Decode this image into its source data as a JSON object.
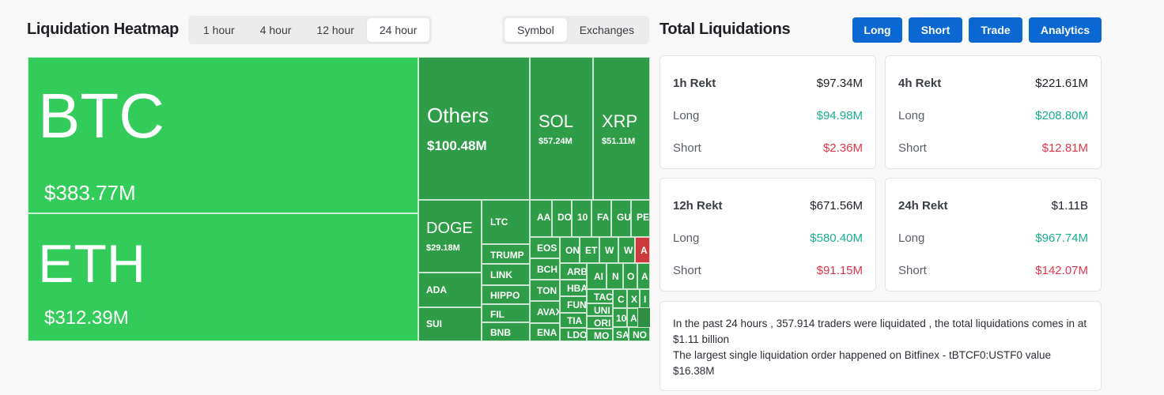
{
  "header": {
    "title": "Liquidation Heatmap",
    "time_options": [
      "1 hour",
      "4 hour",
      "12 hour",
      "24 hour"
    ],
    "time_selected": "24 hour",
    "mode_options": [
      "Symbol",
      "Exchanges"
    ],
    "mode_selected": "Symbol"
  },
  "right_header": {
    "title": "Total Liquidations",
    "buttons": [
      "Long",
      "Short",
      "Trade",
      "Analytics"
    ]
  },
  "colors": {
    "bright_green": "#33cc5a",
    "dark_green": "#2f9c47",
    "red": "#cc3b3b",
    "button_blue": "#0b67d1",
    "long_green": "#1bae8f",
    "short_red": "#e0364a"
  },
  "heatmap": {
    "tiles": [
      {
        "symbol": "BTC",
        "value": "$383.77M",
        "tone": "bright"
      },
      {
        "symbol": "ETH",
        "value": "$312.39M",
        "tone": "bright"
      },
      {
        "symbol": "Others",
        "value": "$100.48M",
        "tone": "dark"
      },
      {
        "symbol": "SOL",
        "value": "$57.24M",
        "tone": "dark"
      },
      {
        "symbol": "XRP",
        "value": "$51.11M",
        "tone": "dark"
      },
      {
        "symbol": "DOGE",
        "value": "$29.18M",
        "tone": "dark"
      },
      {
        "symbol": "ADA",
        "value": "",
        "tone": "dark"
      },
      {
        "symbol": "SUI",
        "value": "",
        "tone": "dark"
      },
      {
        "symbol": "LTC",
        "value": "",
        "tone": "dark"
      },
      {
        "symbol": "TRUMP",
        "value": "",
        "tone": "dark"
      },
      {
        "symbol": "LINK",
        "value": "",
        "tone": "dark"
      },
      {
        "symbol": "HIPPO",
        "value": "",
        "tone": "dark"
      },
      {
        "symbol": "FIL",
        "value": "",
        "tone": "dark"
      },
      {
        "symbol": "BNB",
        "value": "",
        "tone": "dark"
      },
      {
        "symbol": "AA",
        "value": "",
        "tone": "dark"
      },
      {
        "symbol": "DO",
        "value": "",
        "tone": "dark"
      },
      {
        "symbol": "10",
        "value": "",
        "tone": "dark"
      },
      {
        "symbol": "FA",
        "value": "",
        "tone": "dark"
      },
      {
        "symbol": "GU",
        "value": "",
        "tone": "dark"
      },
      {
        "symbol": "PE",
        "value": "",
        "tone": "dark"
      },
      {
        "symbol": "EOS",
        "value": "",
        "tone": "dark"
      },
      {
        "symbol": "BCH",
        "value": "",
        "tone": "dark"
      },
      {
        "symbol": "TON",
        "value": "",
        "tone": "dark"
      },
      {
        "symbol": "AVAX",
        "value": "",
        "tone": "dark"
      },
      {
        "symbol": "ENA",
        "value": "",
        "tone": "dark"
      },
      {
        "symbol": "ON",
        "value": "",
        "tone": "dark"
      },
      {
        "symbol": "ET",
        "value": "",
        "tone": "dark"
      },
      {
        "symbol": "W",
        "value": "",
        "tone": "dark"
      },
      {
        "symbol": "W",
        "value": "",
        "tone": "dark"
      },
      {
        "symbol": "A",
        "value": "",
        "tone": "red"
      },
      {
        "symbol": "ARB",
        "value": "",
        "tone": "dark"
      },
      {
        "symbol": "HBA",
        "value": "",
        "tone": "dark"
      },
      {
        "symbol": "FUN",
        "value": "",
        "tone": "dark"
      },
      {
        "symbol": "TIA",
        "value": "",
        "tone": "dark"
      },
      {
        "symbol": "LDO",
        "value": "",
        "tone": "dark"
      },
      {
        "symbol": "AI",
        "value": "",
        "tone": "dark"
      },
      {
        "symbol": "N",
        "value": "",
        "tone": "dark"
      },
      {
        "symbol": "O",
        "value": "",
        "tone": "dark"
      },
      {
        "symbol": "A",
        "value": "",
        "tone": "dark"
      },
      {
        "symbol": "TAC",
        "value": "",
        "tone": "dark"
      },
      {
        "symbol": "UNI",
        "value": "",
        "tone": "dark"
      },
      {
        "symbol": "ORI",
        "value": "",
        "tone": "dark"
      },
      {
        "symbol": "MO",
        "value": "",
        "tone": "dark"
      },
      {
        "symbol": "C",
        "value": "",
        "tone": "dark"
      },
      {
        "symbol": "X",
        "value": "",
        "tone": "dark"
      },
      {
        "symbol": "I",
        "value": "",
        "tone": "dark"
      },
      {
        "symbol": "10",
        "value": "",
        "tone": "dark"
      },
      {
        "symbol": "A",
        "value": "",
        "tone": "dark"
      },
      {
        "symbol": "SA",
        "value": "",
        "tone": "dark"
      },
      {
        "symbol": "NO",
        "value": "",
        "tone": "dark"
      }
    ]
  },
  "cards": [
    {
      "period": "1h Rekt",
      "total": "$97.34M",
      "long_label": "Long",
      "long": "$94.98M",
      "short_label": "Short",
      "short": "$2.36M"
    },
    {
      "period": "4h Rekt",
      "total": "$221.61M",
      "long_label": "Long",
      "long": "$208.80M",
      "short_label": "Short",
      "short": "$12.81M"
    },
    {
      "period": "12h Rekt",
      "total": "$671.56M",
      "long_label": "Long",
      "long": "$580.40M",
      "short_label": "Short",
      "short": "$91.15M"
    },
    {
      "period": "24h Rekt",
      "total": "$1.11B",
      "long_label": "Long",
      "long": "$967.74M",
      "short_label": "Short",
      "short": "$142.07M"
    }
  ],
  "summary": {
    "line1": "In the past 24 hours , 357.914 traders were liquidated , the total liquidations comes in at $1.11 billion",
    "line2": "The largest single liquidation order happened on Bitfinex - tBTCF0:USTF0 value $16.38M"
  }
}
